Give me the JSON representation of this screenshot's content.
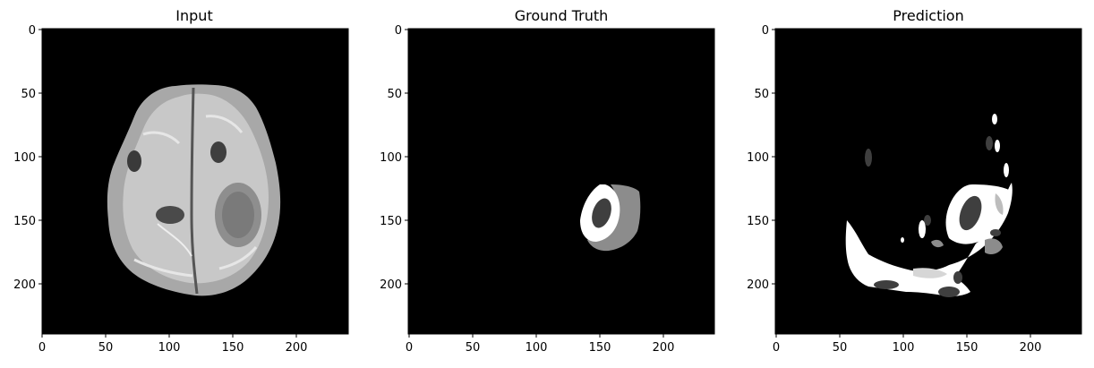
{
  "figure": {
    "panels": [
      {
        "id": "input",
        "title": "Input",
        "xticks": [
          "0",
          "50",
          "100",
          "150",
          "200"
        ],
        "yticks": [
          "0",
          "50",
          "100",
          "150",
          "200"
        ]
      },
      {
        "id": "ground-truth",
        "title": "Ground Truth",
        "xticks": [
          "0",
          "50",
          "100",
          "150",
          "200"
        ],
        "yticks": [
          "0",
          "50",
          "100",
          "150",
          "200"
        ]
      },
      {
        "id": "prediction",
        "title": "Prediction",
        "xticks": [
          "0",
          "50",
          "100",
          "150",
          "200"
        ],
        "yticks": [
          "0",
          "50",
          "100",
          "150",
          "200"
        ]
      }
    ],
    "axis_range": [
      0,
      240
    ],
    "colors": {
      "background": "#000000",
      "class_dark": "#3f3f3f",
      "class_mid": "#8c8c8c",
      "class_light": "#ffffff"
    }
  }
}
